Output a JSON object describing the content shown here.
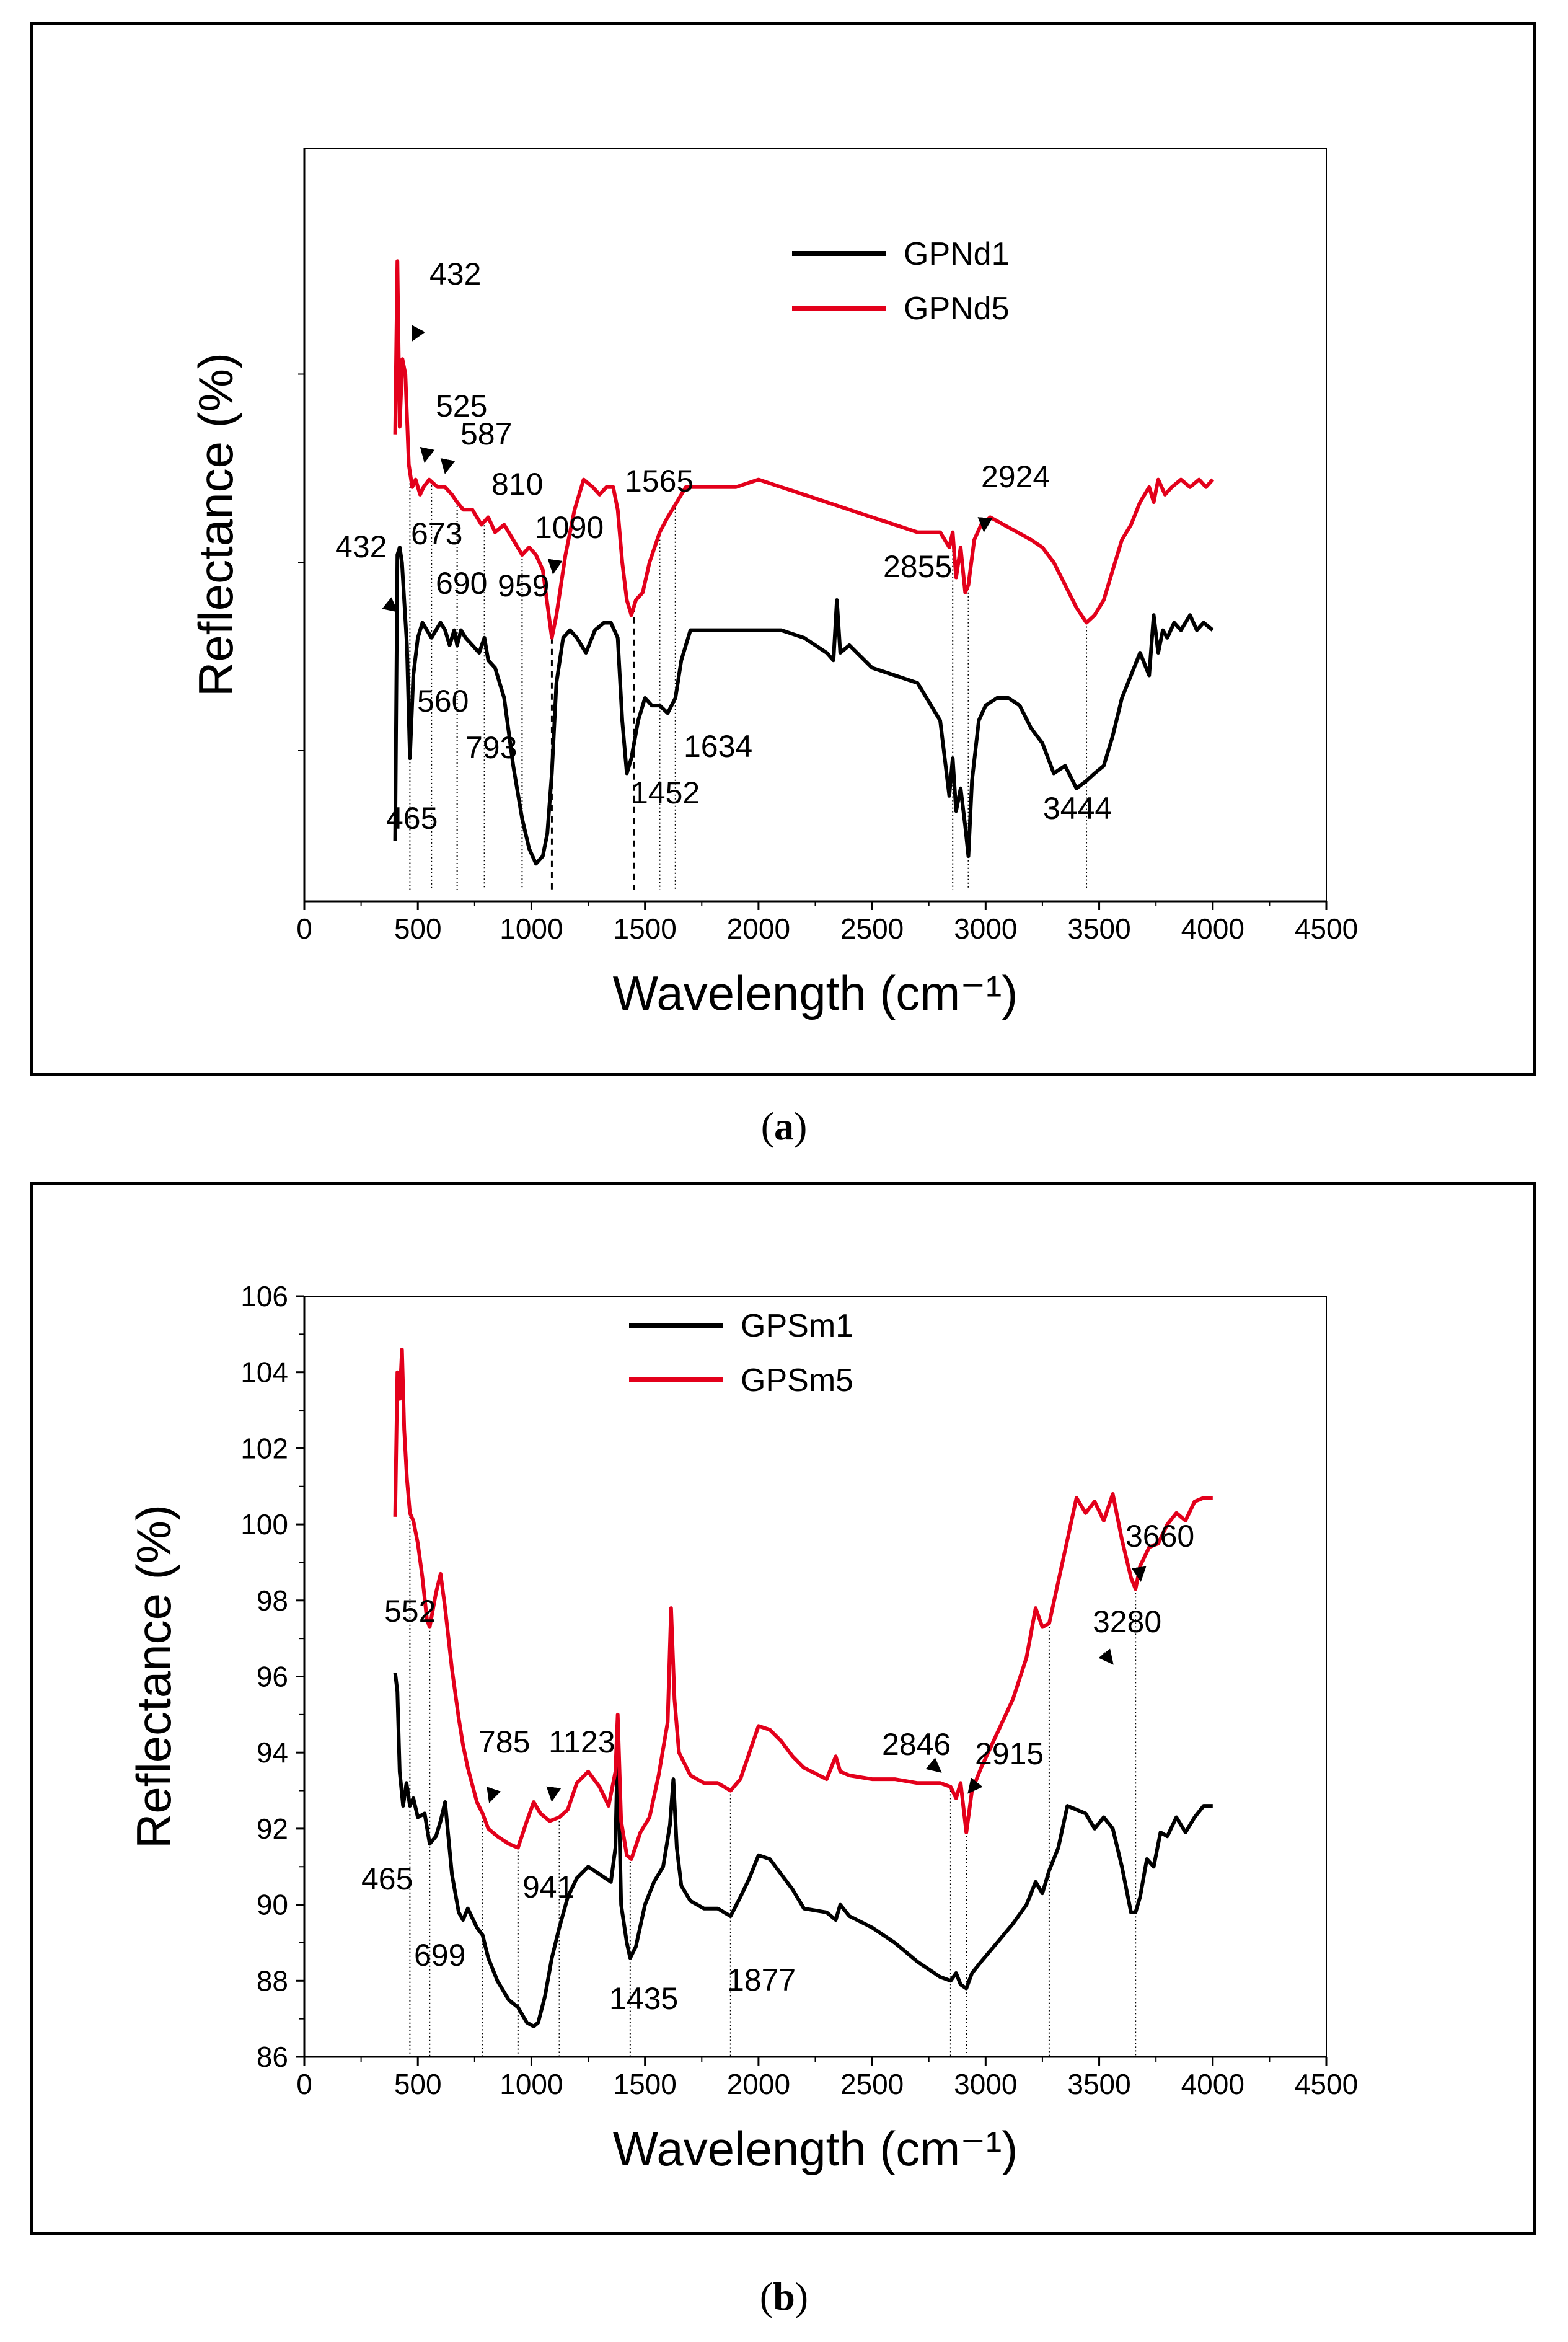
{
  "chart_data": [
    {
      "type": "line",
      "panel": "a",
      "caption_letter": "a",
      "xlabel": "Wavelength (cm⁻¹)",
      "ylabel": "Reflectance (%)",
      "xlim": [
        0,
        4500
      ],
      "x_ticks": [
        0,
        500,
        1000,
        1500,
        2000,
        2500,
        3000,
        3500,
        4000,
        4500
      ],
      "x_tick_labels": [
        "0",
        "500",
        "1000",
        "1500",
        "2000",
        "2500",
        "3000",
        "3500",
        "4000",
        "4500"
      ],
      "ylim": [
        0,
        100
      ],
      "y_ticks": [],
      "legend_position": "top-center",
      "series": [
        {
          "name": "GPNd1",
          "color": "#000000",
          "x": [
            400,
            410,
            420,
            430,
            440,
            452,
            465,
            480,
            500,
            520,
            540,
            560,
            580,
            600,
            620,
            640,
            660,
            673,
            690,
            710,
            740,
            770,
            793,
            810,
            840,
            880,
            920,
            959,
            990,
            1020,
            1050,
            1070,
            1090,
            1110,
            1140,
            1170,
            1200,
            1240,
            1280,
            1320,
            1350,
            1380,
            1400,
            1420,
            1440,
            1452,
            1470,
            1500,
            1530,
            1565,
            1600,
            1634,
            1660,
            1700,
            1800,
            1900,
            2000,
            2100,
            2200,
            2300,
            2330,
            2345,
            2360,
            2400,
            2500,
            2600,
            2700,
            2800,
            2840,
            2855,
            2870,
            2890,
            2910,
            2924,
            2940,
            2970,
            3000,
            3050,
            3100,
            3150,
            3200,
            3250,
            3300,
            3350,
            3400,
            3444,
            3480,
            3520,
            3560,
            3600,
            3640,
            3680,
            3720,
            3740,
            3760,
            3780,
            3800,
            3830,
            3860,
            3900,
            3930,
            3960,
            4000
          ],
          "y": [
            8,
            46,
            47,
            45,
            40,
            34,
            19,
            30,
            35,
            37,
            36,
            35,
            36,
            37,
            36,
            34,
            36,
            34,
            36,
            35,
            34,
            33,
            35,
            32,
            31,
            27,
            18,
            11,
            7,
            5,
            6,
            9,
            17,
            29,
            35,
            36,
            35,
            33,
            36,
            37,
            37,
            35,
            24,
            17,
            19,
            21,
            24,
            27,
            26,
            26,
            25,
            27,
            32,
            36,
            36,
            36,
            36,
            36,
            35,
            33,
            32,
            40,
            33,
            34,
            31,
            30,
            29,
            24,
            14,
            19,
            12,
            15,
            10,
            6,
            16,
            24,
            26,
            27,
            27,
            26,
            23,
            21,
            17,
            18,
            15,
            16,
            17,
            18,
            22,
            27,
            30,
            33,
            30,
            38,
            33,
            36,
            35,
            37,
            36,
            38,
            36,
            37,
            36
          ]
        },
        {
          "name": "GPNd5",
          "color": "#e3001b",
          "x": [
            400,
            410,
            420,
            432,
            445,
            460,
            475,
            490,
            510,
            525,
            550,
            587,
            620,
            650,
            673,
            700,
            740,
            780,
            810,
            840,
            880,
            920,
            959,
            990,
            1020,
            1050,
            1090,
            1110,
            1150,
            1190,
            1230,
            1270,
            1300,
            1330,
            1360,
            1380,
            1400,
            1420,
            1440,
            1460,
            1490,
            1520,
            1565,
            1600,
            1640,
            1680,
            1720,
            1800,
            1900,
            2000,
            2100,
            2200,
            2300,
            2400,
            2500,
            2600,
            2700,
            2800,
            2840,
            2855,
            2870,
            2890,
            2910,
            2924,
            2950,
            2980,
            3020,
            3080,
            3140,
            3200,
            3250,
            3300,
            3350,
            3400,
            3444,
            3480,
            3520,
            3560,
            3600,
            3640,
            3680,
            3720,
            3740,
            3760,
            3790,
            3820,
            3860,
            3900,
            3940,
            3970,
            4000
          ],
          "y": [
            62,
            85,
            63,
            72,
            70,
            58,
            55,
            56,
            54,
            55,
            56,
            55,
            55,
            54,
            53,
            52,
            52,
            50,
            51,
            49,
            50,
            48,
            46,
            47,
            46,
            44,
            35,
            38,
            46,
            52,
            56,
            55,
            54,
            55,
            55,
            52,
            45,
            40,
            38,
            40,
            41,
            45,
            49,
            51,
            53,
            55,
            55,
            55,
            55,
            56,
            55,
            54,
            53,
            52,
            51,
            50,
            49,
            49,
            47,
            49,
            43,
            47,
            41,
            42,
            48,
            50,
            51,
            50,
            49,
            48,
            47,
            45,
            42,
            39,
            37,
            38,
            40,
            44,
            48,
            50,
            53,
            55,
            53,
            56,
            54,
            55,
            56,
            55,
            56,
            55,
            56
          ]
        }
      ],
      "annotations": [
        "432",
        "525",
        "587",
        "810",
        "673",
        "1090",
        "690",
        "959",
        "1565",
        "2924",
        "2855",
        "432",
        "560",
        "793",
        "465",
        "1452",
        "1634",
        "3444"
      ]
    },
    {
      "type": "line",
      "panel": "b",
      "caption_letter": "b",
      "xlabel": "Wavelength (cm⁻¹)",
      "ylabel": "Reflectance (%)",
      "xlim": [
        0,
        4500
      ],
      "x_ticks": [
        0,
        500,
        1000,
        1500,
        2000,
        2500,
        3000,
        3500,
        4000,
        4500
      ],
      "x_tick_labels": [
        "0",
        "500",
        "1000",
        "1500",
        "2000",
        "2500",
        "3000",
        "3500",
        "4000",
        "4500"
      ],
      "ylim": [
        86,
        106
      ],
      "y_ticks": [
        86,
        88,
        90,
        92,
        94,
        96,
        98,
        100,
        102,
        104,
        106
      ],
      "y_tick_labels": [
        "86",
        "88",
        "90",
        "92",
        "94",
        "96",
        "98",
        "100",
        "102",
        "104",
        "106"
      ],
      "legend_position": "top-center",
      "series": [
        {
          "name": "GPSm1",
          "color": "#000000",
          "x": [
            400,
            410,
            420,
            435,
            450,
            465,
            480,
            500,
            530,
            552,
            580,
            600,
            620,
            650,
            680,
            699,
            720,
            760,
            785,
            810,
            850,
            900,
            941,
            980,
            1010,
            1030,
            1060,
            1090,
            1123,
            1160,
            1200,
            1250,
            1300,
            1350,
            1370,
            1380,
            1395,
            1420,
            1435,
            1460,
            1500,
            1540,
            1580,
            1610,
            1625,
            1640,
            1660,
            1700,
            1760,
            1820,
            1877,
            1920,
            1960,
            2000,
            2050,
            2100,
            2150,
            2200,
            2300,
            2340,
            2360,
            2400,
            2500,
            2600,
            2700,
            2800,
            2846,
            2870,
            2890,
            2915,
            2940,
            2980,
            3050,
            3120,
            3180,
            3220,
            3250,
            3280,
            3320,
            3360,
            3400,
            3440,
            3480,
            3520,
            3560,
            3600,
            3640,
            3660,
            3680,
            3710,
            3740,
            3770,
            3800,
            3840,
            3880,
            3920,
            3960,
            4000
          ],
          "y": [
            96.1,
            95.6,
            93.5,
            92.6,
            93.2,
            92.6,
            92.8,
            92.3,
            92.4,
            91.6,
            91.8,
            92.2,
            92.7,
            90.8,
            89.8,
            89.6,
            89.9,
            89.4,
            89.2,
            88.6,
            88.0,
            87.5,
            87.3,
            86.9,
            86.8,
            86.9,
            87.6,
            88.6,
            89.4,
            90.2,
            90.7,
            91.0,
            90.8,
            90.6,
            91.5,
            94.3,
            90.0,
            89.0,
            88.6,
            88.9,
            90.0,
            90.6,
            91.0,
            92.1,
            93.3,
            91.5,
            90.5,
            90.1,
            89.9,
            89.9,
            89.7,
            90.2,
            90.7,
            91.3,
            91.2,
            90.8,
            90.4,
            89.9,
            89.8,
            89.6,
            90.0,
            89.7,
            89.4,
            89.0,
            88.5,
            88.1,
            88.0,
            88.2,
            87.9,
            87.8,
            88.2,
            88.5,
            89.0,
            89.5,
            90.0,
            90.6,
            90.3,
            90.9,
            91.5,
            92.6,
            92.5,
            92.4,
            92.0,
            92.3,
            92.0,
            91.0,
            89.8,
            89.8,
            90.2,
            91.2,
            91.0,
            91.9,
            91.8,
            92.3,
            91.9,
            92.3,
            92.6,
            92.6
          ]
        },
        {
          "name": "GPSm5",
          "color": "#e3001b",
          "x": [
            400,
            410,
            420,
            430,
            440,
            452,
            465,
            480,
            500,
            520,
            540,
            552,
            580,
            600,
            620,
            650,
            680,
            699,
            720,
            760,
            785,
            810,
            850,
            900,
            941,
            980,
            1010,
            1040,
            1080,
            1123,
            1160,
            1200,
            1250,
            1300,
            1340,
            1370,
            1380,
            1395,
            1420,
            1440,
            1480,
            1520,
            1560,
            1600,
            1615,
            1630,
            1650,
            1700,
            1760,
            1820,
            1877,
            1920,
            1960,
            2000,
            2050,
            2100,
            2150,
            2200,
            2300,
            2340,
            2360,
            2400,
            2500,
            2600,
            2700,
            2800,
            2846,
            2870,
            2890,
            2915,
            2940,
            2980,
            3050,
            3120,
            3180,
            3220,
            3250,
            3280,
            3320,
            3360,
            3400,
            3440,
            3480,
            3520,
            3560,
            3600,
            3640,
            3660,
            3680,
            3720,
            3760,
            3800,
            3840,
            3880,
            3920,
            3960,
            4000
          ],
          "y": [
            100.2,
            104.0,
            103.3,
            104.6,
            102.5,
            101.2,
            100.3,
            100.1,
            99.5,
            98.6,
            97.5,
            97.3,
            98.2,
            98.7,
            97.8,
            96.2,
            94.9,
            94.2,
            93.6,
            92.7,
            92.4,
            92.0,
            91.8,
            91.6,
            91.5,
            92.2,
            92.7,
            92.4,
            92.2,
            92.3,
            92.5,
            93.2,
            93.5,
            93.1,
            92.6,
            93.5,
            95.0,
            92.2,
            91.3,
            91.2,
            91.9,
            92.3,
            93.4,
            94.8,
            97.8,
            95.4,
            94.0,
            93.4,
            93.2,
            93.2,
            93.0,
            93.3,
            94.0,
            94.7,
            94.6,
            94.3,
            93.9,
            93.6,
            93.3,
            93.9,
            93.5,
            93.4,
            93.3,
            93.3,
            93.2,
            93.2,
            93.1,
            92.8,
            93.2,
            91.9,
            93.0,
            93.6,
            94.5,
            95.4,
            96.5,
            97.8,
            97.3,
            97.4,
            98.5,
            99.6,
            100.7,
            100.3,
            100.6,
            100.1,
            100.8,
            99.6,
            98.6,
            98.3,
            98.9,
            99.4,
            99.5,
            100.0,
            100.3,
            100.1,
            100.6,
            100.7,
            100.7
          ]
        }
      ],
      "annotations": [
        "552",
        "785",
        "1123",
        "3280",
        "3660",
        "2846",
        "2915",
        "465",
        "941",
        "699",
        "1435",
        "1877"
      ]
    }
  ]
}
